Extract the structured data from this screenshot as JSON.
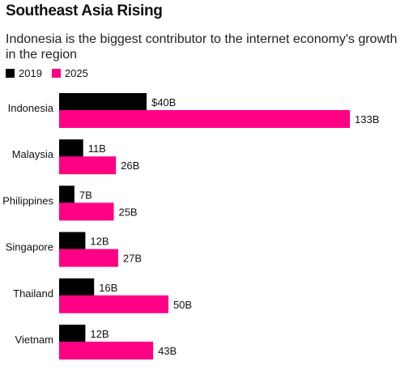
{
  "chart_data": {
    "type": "bar",
    "orientation": "horizontal",
    "title": "Southeast Asia Rising",
    "subtitle": "Indonesia is the biggest contributor to the internet economy's growth in the region",
    "categories": [
      "Indonesia",
      "Malaysia",
      "Philippines",
      "Singapore",
      "Thailand",
      "Vietnam"
    ],
    "series": [
      {
        "name": "2019",
        "color": "#000000",
        "values": [
          40,
          11,
          7,
          12,
          16,
          12
        ],
        "labels": [
          "$40B",
          "11B",
          "7B",
          "12B",
          "16B",
          "12B"
        ]
      },
      {
        "name": "2025",
        "color": "#ff0084",
        "values": [
          133,
          26,
          25,
          27,
          50,
          43
        ],
        "labels": [
          "133B",
          "26B",
          "25B",
          "27B",
          "50B",
          "43B"
        ]
      }
    ],
    "legend_position": "top-left",
    "grid": false,
    "xlim": [
      0,
      133
    ]
  }
}
